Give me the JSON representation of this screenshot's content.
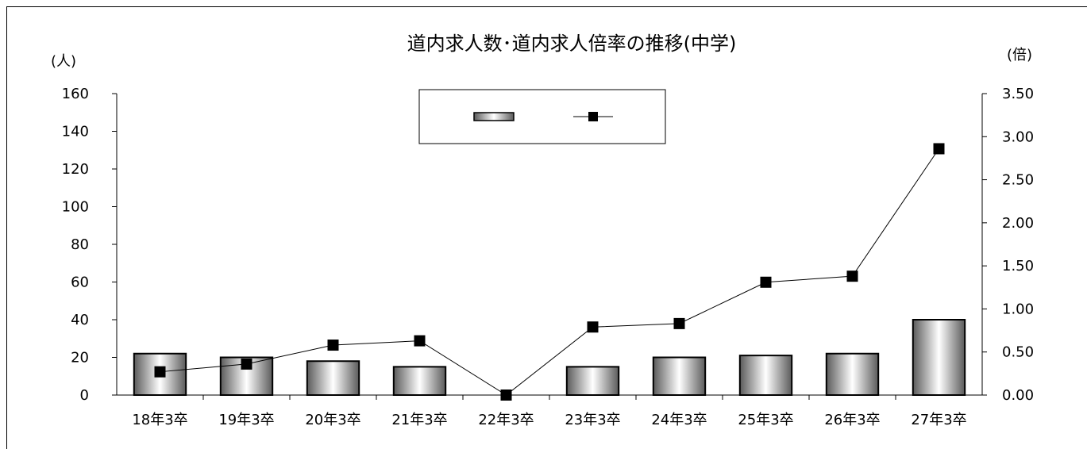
{
  "chart_data": {
    "type": "bar+line",
    "title": "道内求人数･道内求人倍率の推移(中学)",
    "left_axis_unit": "(人)",
    "right_axis_unit": "(倍)",
    "categories": [
      "18年3卒",
      "19年3卒",
      "20年3卒",
      "21年3卒",
      "22年3卒",
      "23年3卒",
      "24年3卒",
      "25年3卒",
      "26年3卒",
      "27年3卒"
    ],
    "left_ylim": [
      0,
      160
    ],
    "left_ticks": [
      "0",
      "20",
      "40",
      "60",
      "80",
      "100",
      "120",
      "140",
      "160"
    ],
    "right_ylim": [
      0,
      3.5
    ],
    "right_ticks": [
      "0.00",
      "0.50",
      "1.00",
      "1.50",
      "2.00",
      "2.50",
      "3.00",
      "3.50"
    ],
    "series": [
      {
        "type": "bar",
        "axis": "left",
        "values": [
          22,
          20,
          18,
          15,
          0,
          15,
          20,
          21,
          22,
          40
        ]
      },
      {
        "type": "line",
        "axis": "right",
        "values": [
          0.27,
          0.36,
          0.58,
          0.63,
          0.0,
          0.79,
          0.83,
          1.31,
          1.38,
          2.86
        ]
      }
    ],
    "legend": {
      "position": "top-center"
    },
    "grid": false
  }
}
